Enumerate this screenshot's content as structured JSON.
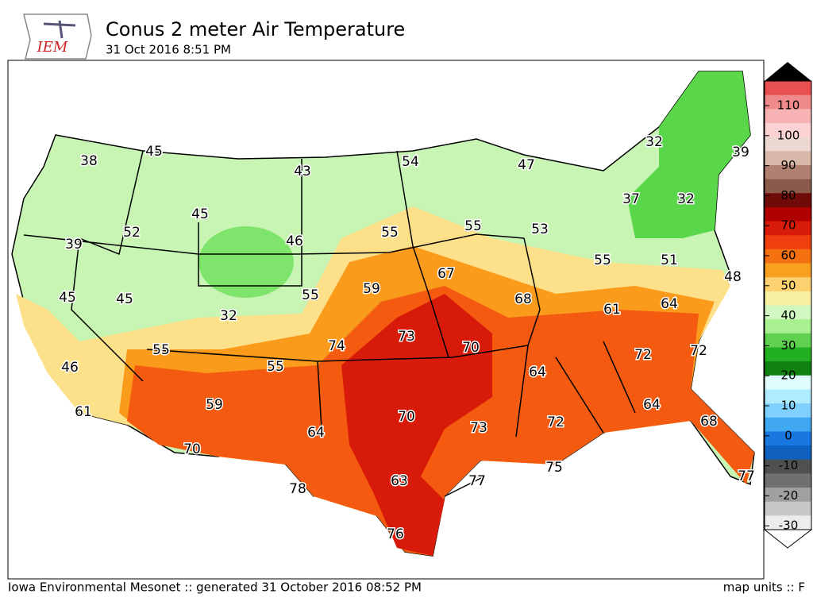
{
  "header": {
    "logo": "IEM",
    "title": "Conus 2 meter Air Temperature",
    "subtitle": "31 Oct 2016 8:51 PM"
  },
  "map": {
    "station_values": [
      38,
      45,
      43,
      54,
      47,
      32,
      39,
      45,
      52,
      46,
      55,
      55,
      53,
      37,
      32,
      39,
      55,
      51,
      48,
      67,
      59,
      68,
      61,
      64,
      45,
      45,
      55,
      32,
      74,
      73,
      70,
      72,
      72,
      55,
      55,
      64,
      46,
      59,
      70,
      73,
      72,
      64,
      68,
      61,
      64,
      70,
      75,
      78,
      63,
      77,
      77,
      76
    ]
  },
  "colorbar": {
    "ticks": [
      110,
      100,
      90,
      80,
      70,
      60,
      50,
      40,
      30,
      20,
      10,
      0,
      -10,
      -20,
      -30
    ]
  },
  "footer": {
    "left": "Iowa Environmental Mesonet :: generated 31 October 2016 08:52 PM",
    "right": "map units :: F"
  }
}
